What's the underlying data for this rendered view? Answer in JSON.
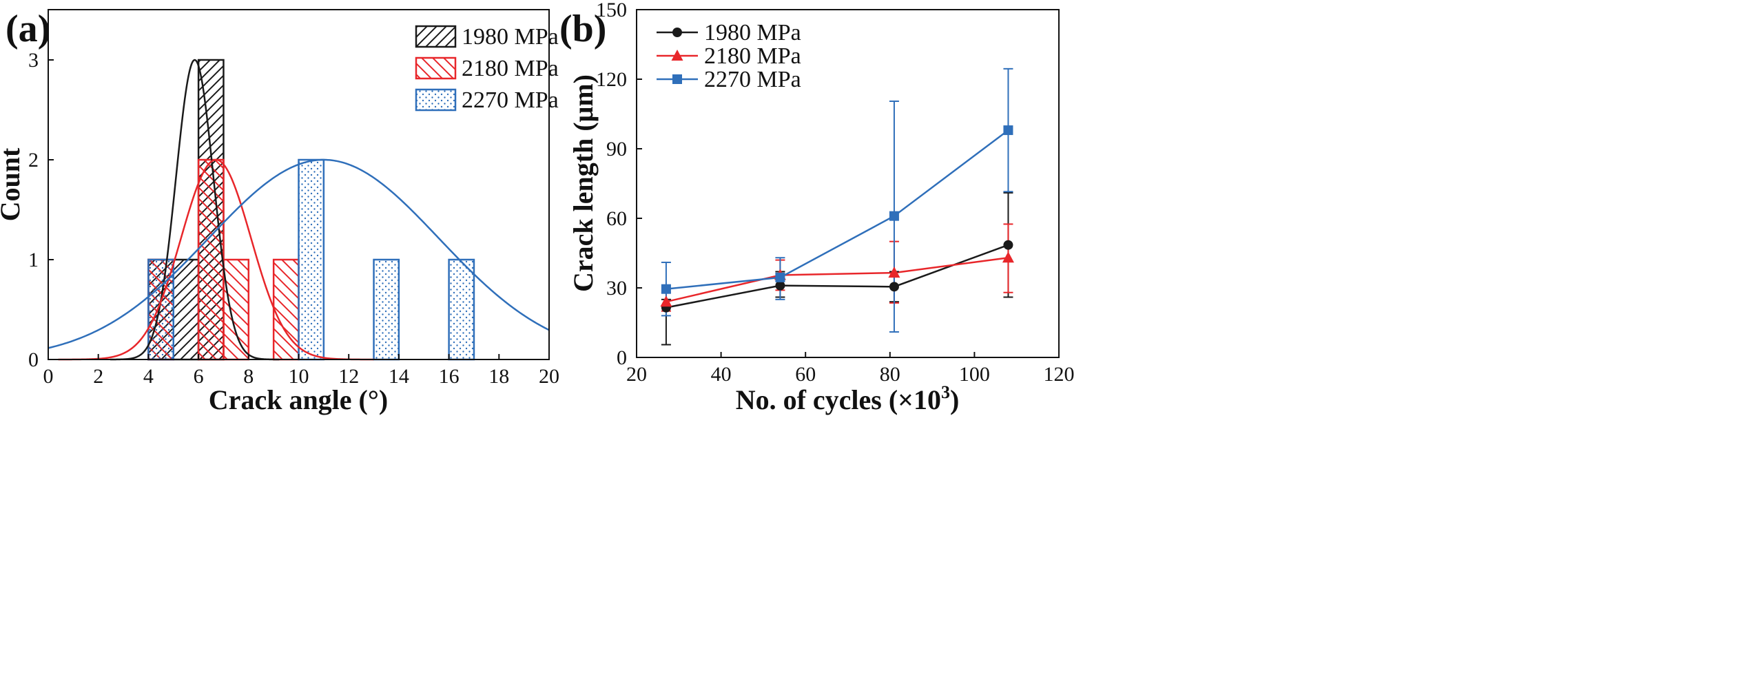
{
  "panels": {
    "a": {
      "label": "(a)"
    },
    "b": {
      "label": "(b)"
    }
  },
  "chart_data": [
    {
      "type": "histogram",
      "panel": "(a)",
      "xlabel": "Crack angle (°)",
      "ylabel": "Count",
      "xlim": [
        0,
        20
      ],
      "ylim": [
        0,
        3.2
      ],
      "xticks": [
        0,
        2,
        4,
        6,
        8,
        10,
        12,
        14,
        16,
        18,
        20
      ],
      "yticks": [
        0,
        1,
        2,
        3
      ],
      "legend_position": "top-right",
      "series": [
        {
          "name": "1980 MPa",
          "color": "#1a1a1a",
          "pattern": "diagonal-hatch-forward",
          "bins": [
            {
              "x0": 4,
              "x1": 5,
              "count": 1
            },
            {
              "x0": 5,
              "x1": 6,
              "count": 1
            },
            {
              "x0": 6,
              "x1": 7,
              "count": 3
            }
          ],
          "fit": {
            "mean": 5.85,
            "sd": 0.75,
            "peak": 3.0
          }
        },
        {
          "name": "2180 MPa",
          "color": "#e8262a",
          "pattern": "diagonal-hatch-back",
          "bins": [
            {
              "x0": 4,
              "x1": 5,
              "count": 1
            },
            {
              "x0": 6,
              "x1": 7,
              "count": 2
            },
            {
              "x0": 7,
              "x1": 8,
              "count": 1
            },
            {
              "x0": 9,
              "x1": 10,
              "count": 1
            }
          ],
          "fit": {
            "mean": 6.7,
            "sd": 1.4,
            "peak": 2.0
          }
        },
        {
          "name": "2270 MPa",
          "color": "#2f6fba",
          "pattern": "dots",
          "bins": [
            {
              "x0": 4,
              "x1": 5,
              "count": 1
            },
            {
              "x0": 10,
              "x1": 11,
              "count": 2
            },
            {
              "x0": 13,
              "x1": 14,
              "count": 1
            },
            {
              "x0": 16,
              "x1": 17,
              "count": 1
            }
          ],
          "fit": {
            "mean": 11.0,
            "sd": 4.6,
            "peak": 2.0
          }
        }
      ]
    },
    {
      "type": "line",
      "panel": "(b)",
      "xlabel": "No. of cycles (×10",
      "xlabel_sup": "3",
      "xlabel_close": ")",
      "ylabel": "Crack length (μm)",
      "xlim": [
        20,
        120
      ],
      "ylim": [
        0,
        150
      ],
      "xticks": [
        20,
        40,
        60,
        80,
        100,
        120
      ],
      "yticks": [
        0,
        30,
        60,
        90,
        120,
        150
      ],
      "legend_position": "top-left",
      "series": [
        {
          "name": "1980 MPa",
          "color": "#1a1a1a",
          "marker": "circle",
          "points": [
            {
              "x": 27,
              "y": 21.5,
              "lo": 5.5,
              "hi": 25
            },
            {
              "x": 54,
              "y": 31,
              "lo": 26,
              "hi": 37
            },
            {
              "x": 81,
              "y": 30.5,
              "lo": 24,
              "hi": 37
            },
            {
              "x": 108,
              "y": 48.5,
              "lo": 26,
              "hi": 71
            }
          ]
        },
        {
          "name": "2180 MPa",
          "color": "#e8262a",
          "marker": "triangle",
          "points": [
            {
              "x": 27,
              "y": 24,
              "lo": 20,
              "hi": 28
            },
            {
              "x": 54,
              "y": 35.5,
              "lo": 29,
              "hi": 42
            },
            {
              "x": 81,
              "y": 36.5,
              "lo": 23.5,
              "hi": 50
            },
            {
              "x": 108,
              "y": 43,
              "lo": 28,
              "hi": 57.5
            }
          ]
        },
        {
          "name": "2270 MPa",
          "color": "#2f6fba",
          "marker": "square",
          "points": [
            {
              "x": 27,
              "y": 29.5,
              "lo": 18,
              "hi": 41
            },
            {
              "x": 54,
              "y": 34.5,
              "lo": 25,
              "hi": 43
            },
            {
              "x": 81,
              "y": 61,
              "lo": 11,
              "hi": 110.5
            },
            {
              "x": 108,
              "y": 98,
              "lo": 71.5,
              "hi": 124.5
            }
          ]
        }
      ]
    }
  ]
}
